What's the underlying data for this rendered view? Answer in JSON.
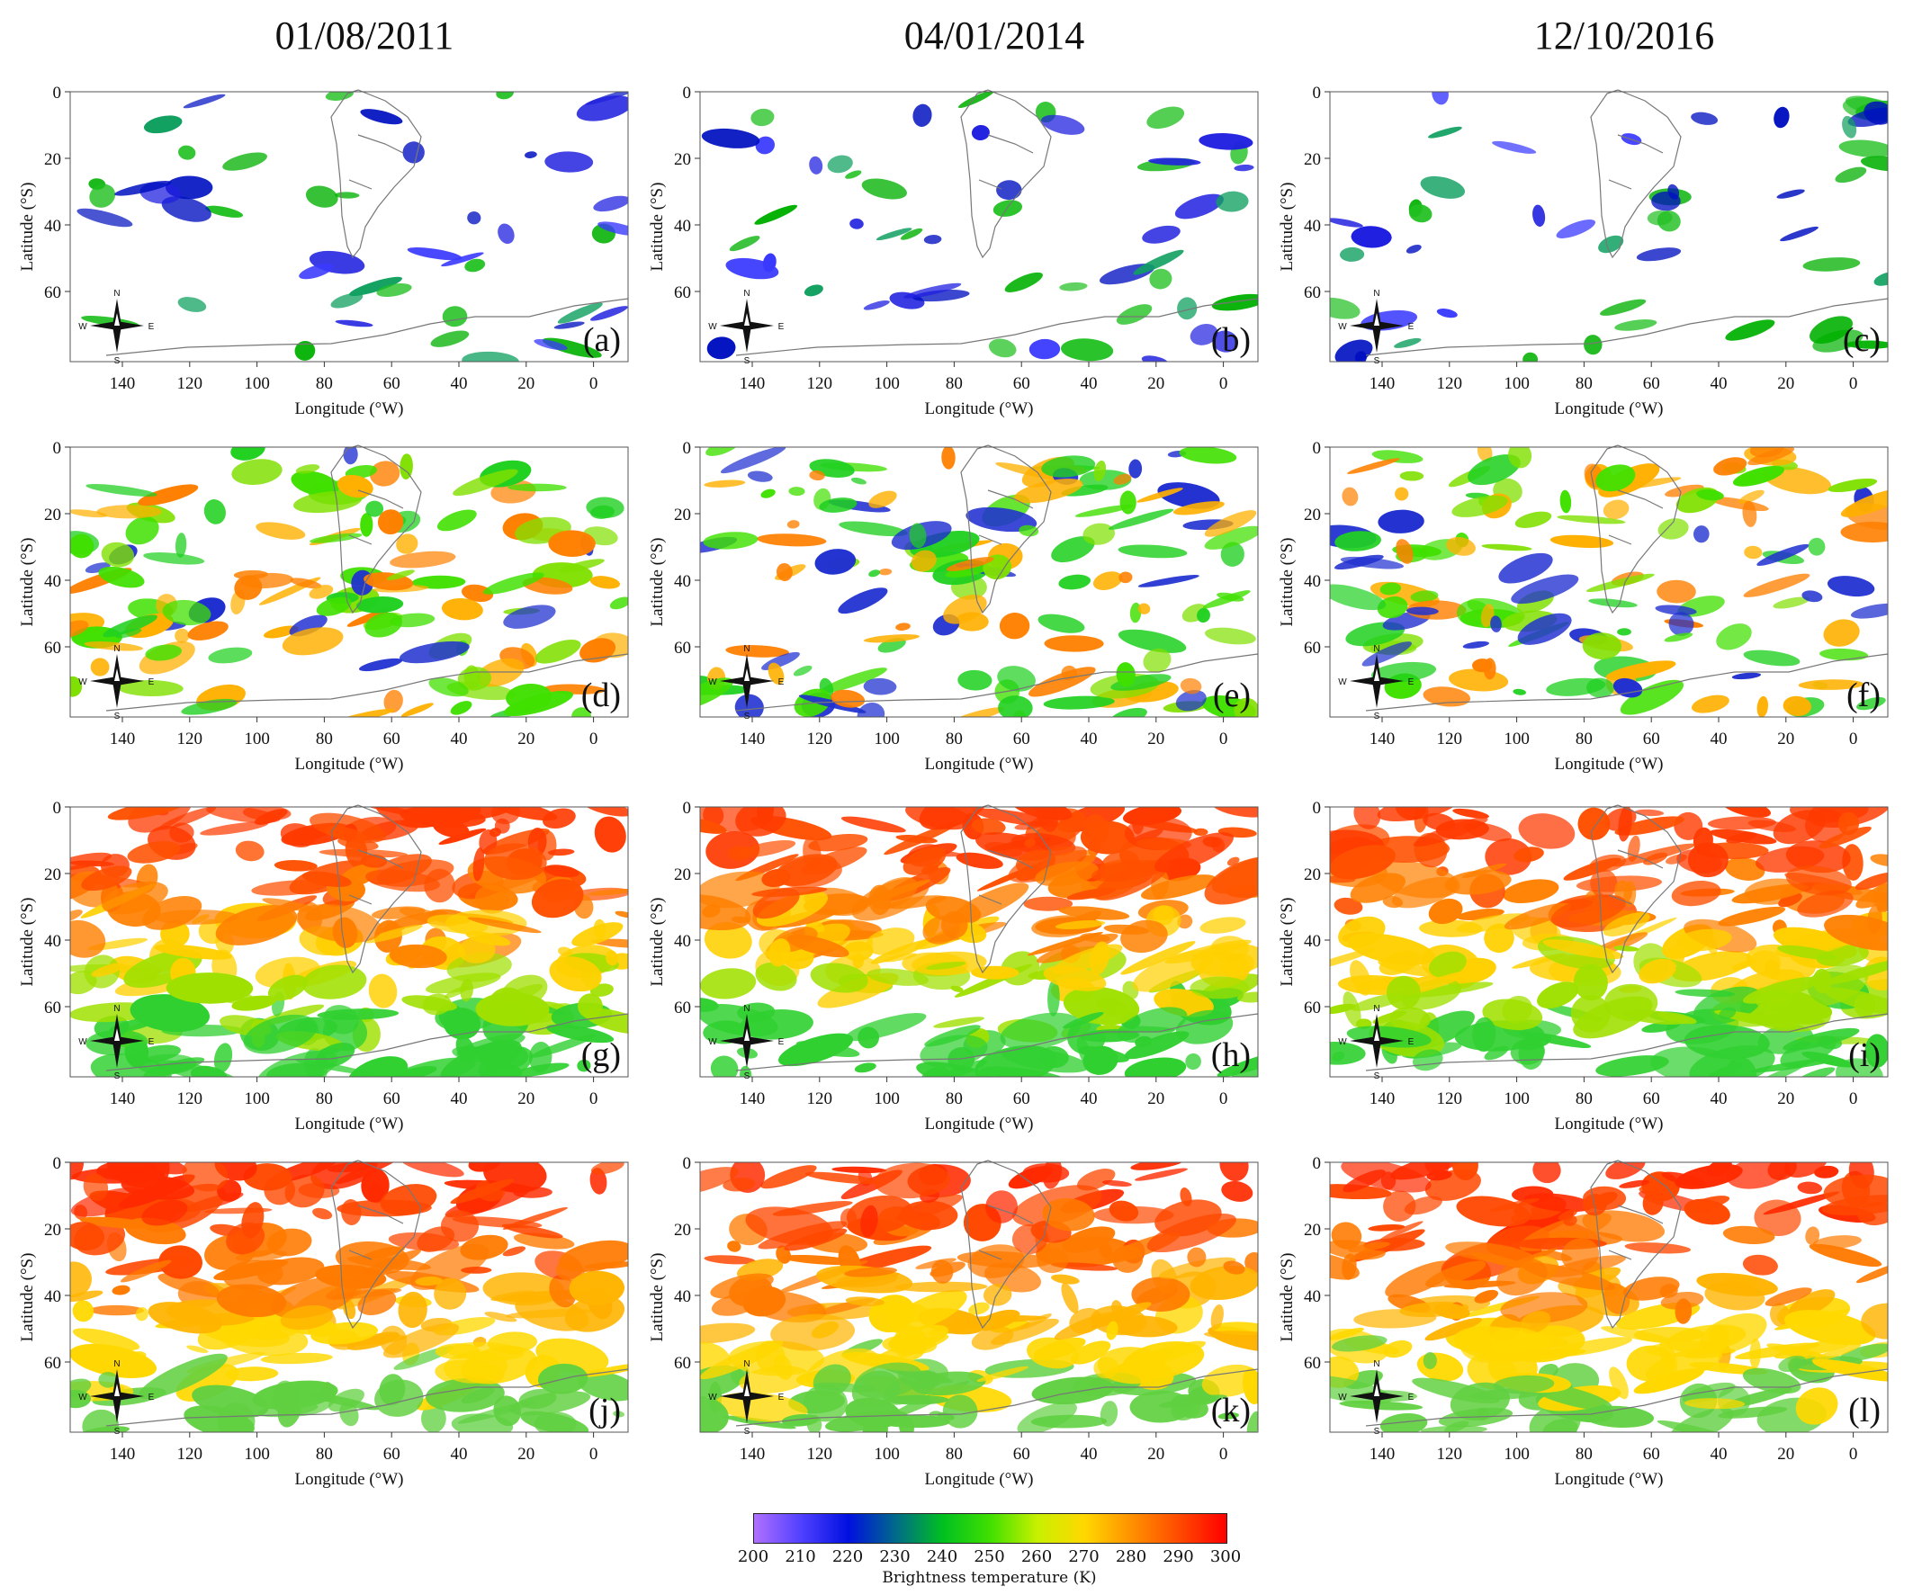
{
  "columns": [
    {
      "date": "01/08/2011"
    },
    {
      "date": "04/01/2014"
    },
    {
      "date": "12/10/2016"
    }
  ],
  "axes": {
    "xlabel": "Longitude (°W)",
    "ylabel": "Latitude (°S)",
    "xticks": [
      "140",
      "120",
      "100",
      "80",
      "60",
      "40",
      "20",
      "0"
    ],
    "yticks": [
      "0",
      "20",
      "40",
      "60"
    ]
  },
  "compass": {
    "n": "N",
    "s": "S",
    "e": "E",
    "w": "W"
  },
  "panels": [
    {
      "id": "a",
      "label": "(a)",
      "row": 0,
      "col": 0
    },
    {
      "id": "b",
      "label": "(b)",
      "row": 0,
      "col": 1
    },
    {
      "id": "c",
      "label": "(c)",
      "row": 0,
      "col": 2
    },
    {
      "id": "d",
      "label": "(d)",
      "row": 1,
      "col": 0
    },
    {
      "id": "e",
      "label": "(e)",
      "row": 1,
      "col": 1
    },
    {
      "id": "f",
      "label": "(f)",
      "row": 1,
      "col": 2
    },
    {
      "id": "g",
      "label": "(g)",
      "row": 2,
      "col": 0
    },
    {
      "id": "h",
      "label": "(h)",
      "row": 2,
      "col": 1
    },
    {
      "id": "i",
      "label": "(i)",
      "row": 2,
      "col": 2
    },
    {
      "id": "j",
      "label": "(j)",
      "row": 3,
      "col": 0
    },
    {
      "id": "k",
      "label": "(k)",
      "row": 3,
      "col": 1
    },
    {
      "id": "l",
      "label": "(l)",
      "row": 3,
      "col": 2
    }
  ],
  "colorbar": {
    "title": "Brightness temperature (K)",
    "ticks": [
      "200",
      "210",
      "220",
      "230",
      "240",
      "250",
      "260",
      "270",
      "280",
      "290",
      "300"
    ],
    "colors": [
      "#b070ff",
      "#5040ff",
      "#0010e0",
      "#006a8a",
      "#00c020",
      "#40e000",
      "#c8f000",
      "#ffd800",
      "#ff9000",
      "#ff4a00",
      "#ff0000"
    ]
  },
  "rows": [
    {
      "level": "cold",
      "palette": [
        "#2020e0",
        "#0010c0",
        "#3a3aff",
        "#10a060",
        "#20c020",
        "#00b000"
      ]
    },
    {
      "level": "cool",
      "palette": [
        "#20d020",
        "#40e000",
        "#80e000",
        "#ffb000",
        "#ff8000",
        "#2030d0"
      ]
    },
    {
      "level": "warm",
      "palette": [
        "#ff3a00",
        "#ff5000",
        "#ff8000",
        "#ffd000",
        "#a0e000",
        "#30d030"
      ]
    },
    {
      "level": "hot",
      "palette": [
        "#ff2a00",
        "#ff4800",
        "#ff7a00",
        "#ffb400",
        "#ffd800",
        "#60d040"
      ]
    }
  ]
}
